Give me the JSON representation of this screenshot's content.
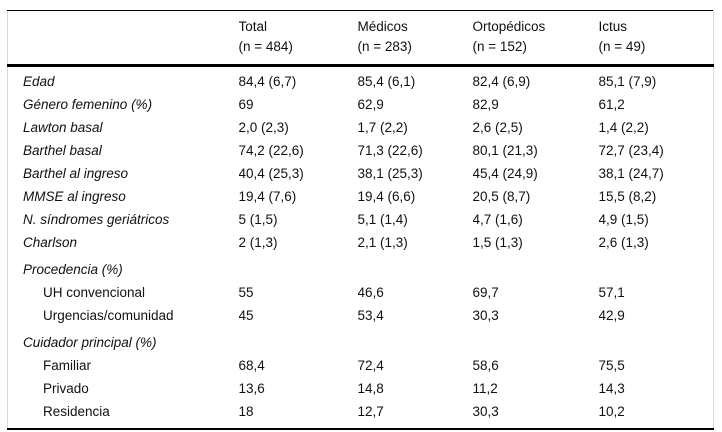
{
  "colors": {
    "text": "#111111",
    "rules": "#000000",
    "scan_edge": "#d9d9d9",
    "background": "#ffffff"
  },
  "table": {
    "columns": [
      {
        "label": "Total",
        "n": "(n = 484)"
      },
      {
        "label": "Médicos",
        "n": "(n = 283)"
      },
      {
        "label": "Ortopédicos",
        "n": "(n = 152)"
      },
      {
        "label": "Ictus",
        "n": "(n = 49)"
      }
    ],
    "rows": [
      {
        "type": "variable",
        "label": "Edad",
        "values": [
          "84,4 (6,7)",
          "85,4 (6,1)",
          "82,4 (6,9)",
          "85,1 (7,9)"
        ]
      },
      {
        "type": "variable",
        "label": "Género femenino (%)",
        "values": [
          "69",
          "62,9",
          "82,9",
          "61,2"
        ]
      },
      {
        "type": "variable",
        "label": "Lawton basal",
        "values": [
          "2,0 (2,3)",
          "1,7 (2,2)",
          "2,6 (2,5)",
          "1,4 (2,2)"
        ]
      },
      {
        "type": "variable",
        "label": "Barthel basal",
        "values": [
          "74,2 (22,6)",
          "71,3 (22,6)",
          "80,1 (21,3)",
          "72,7 (23,4)"
        ]
      },
      {
        "type": "variable",
        "label": "Barthel al ingreso",
        "values": [
          "40,4 (25,3)",
          "38,1 (25,3)",
          "45,4 (24,9)",
          "38,1 (24,7)"
        ]
      },
      {
        "type": "variable",
        "label": "MMSE al ingreso",
        "values": [
          "19,4 (7,6)",
          "19,4 (6,6)",
          "20,5 (8,7)",
          "15,5 (8,2)"
        ]
      },
      {
        "type": "variable",
        "label": "N. síndromes geriátricos",
        "values": [
          "5 (1,5)",
          "5,1 (1,4)",
          "4,7 (1,6)",
          "4,9 (1,5)"
        ]
      },
      {
        "type": "variable",
        "label": "Charlson",
        "values": [
          "2 (1,3)",
          "2,1 (1,3)",
          "1,5 (1,3)",
          "2,6 (1,3)"
        ]
      },
      {
        "type": "section",
        "label": "Procedencia (%)",
        "values": []
      },
      {
        "type": "sub",
        "label": "UH convencional",
        "values": [
          "55",
          "46,6",
          "69,7",
          "57,1"
        ]
      },
      {
        "type": "sub",
        "label": "Urgencias/comunidad",
        "values": [
          "45",
          "53,4",
          "30,3",
          "42,9"
        ]
      },
      {
        "type": "section",
        "label": "Cuidador principal (%)",
        "values": []
      },
      {
        "type": "sub",
        "label": "Familiar",
        "values": [
          "68,4",
          "72,4",
          "58,6",
          "75,5"
        ]
      },
      {
        "type": "sub",
        "label": "Privado",
        "values": [
          "13,6",
          "14,8",
          "11,2",
          "14,3"
        ]
      },
      {
        "type": "sub",
        "label": "Residencia",
        "values": [
          "18",
          "12,7",
          "30,3",
          "10,2"
        ]
      }
    ]
  }
}
